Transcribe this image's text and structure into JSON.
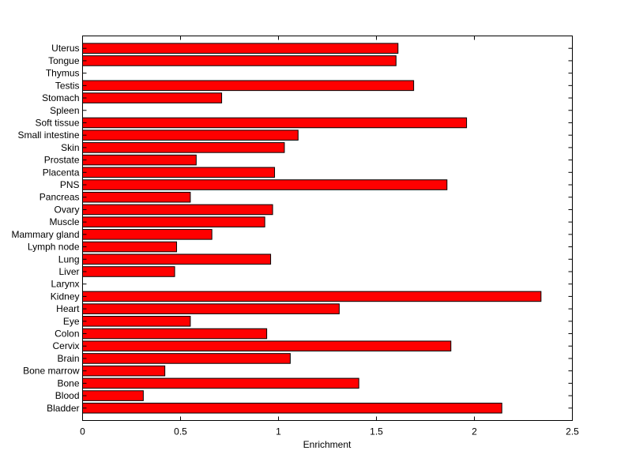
{
  "chart_data": {
    "type": "bar",
    "orientation": "horizontal",
    "title": "",
    "xlabel": "Enrichment",
    "ylabel": "",
    "xlim": [
      0,
      2.5
    ],
    "xticks": [
      "0",
      "0.5",
      "1",
      "1.5",
      "2",
      "2.5"
    ],
    "xtick_values": [
      0,
      0.5,
      1,
      1.5,
      2,
      2.5
    ],
    "bar_color": "#ff0000",
    "edge_color": "#000000",
    "grid": false,
    "categories": [
      "Bladder",
      "Blood",
      "Bone",
      "Bone marrow",
      "Brain",
      "Cervix",
      "Colon",
      "Eye",
      "Heart",
      "Kidney",
      "Larynx",
      "Liver",
      "Lung",
      "Lymph node",
      "Mammary gland",
      "Muscle",
      "Ovary",
      "Pancreas",
      "PNS",
      "Placenta",
      "Prostate",
      "Skin",
      "Small intestine",
      "Soft tissue",
      "Spleen",
      "Stomach",
      "Testis",
      "Thymus",
      "Tongue",
      "Uterus"
    ],
    "values": [
      2.14,
      0.31,
      1.41,
      0.42,
      1.06,
      1.88,
      0.94,
      0.55,
      1.31,
      2.34,
      0,
      0.47,
      0.96,
      0.48,
      0.66,
      0.93,
      0.97,
      0.55,
      1.86,
      0.98,
      0.58,
      1.03,
      1.1,
      1.96,
      0,
      0.71,
      1.69,
      0,
      1.6,
      1.61
    ]
  }
}
